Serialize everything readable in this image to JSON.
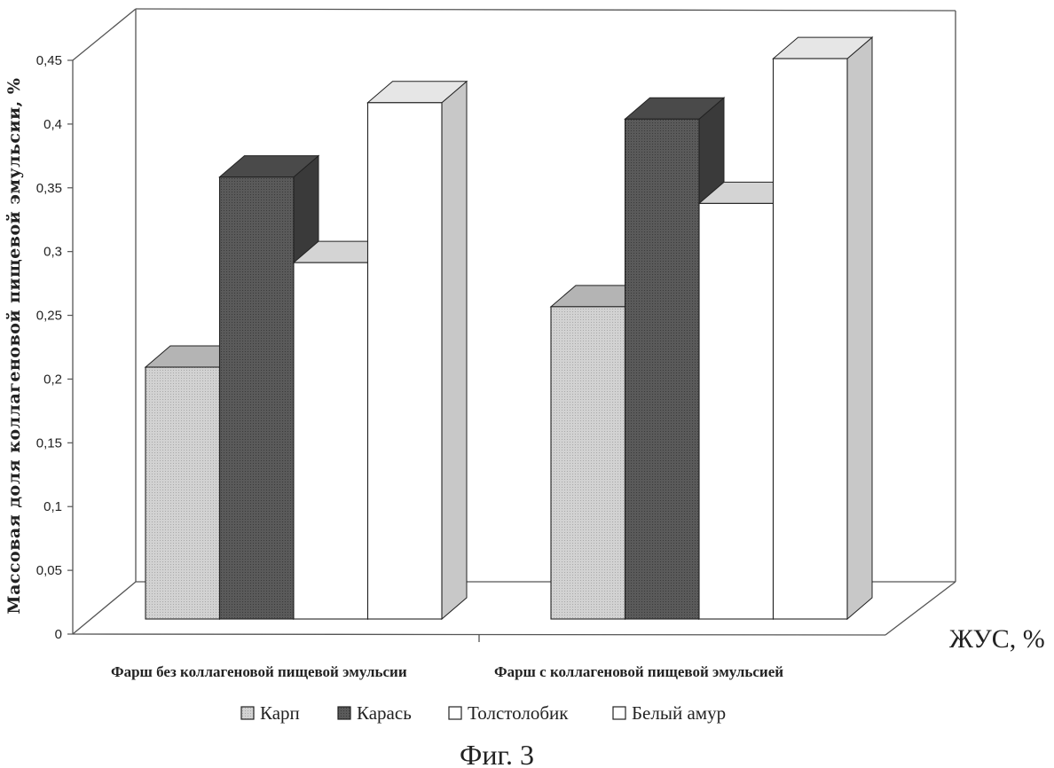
{
  "chart_data": {
    "type": "bar",
    "variant": "3d-clustered",
    "ylabel": "Массовая доля коллагеновой пищевой эмульсии, %",
    "xlabel": "ЖУС, %",
    "ylim": [
      0,
      0.45
    ],
    "y_ticks": [
      "0",
      "0,05",
      "0,1",
      "0,15",
      "0,2",
      "0,25",
      "0,3",
      "0,35",
      "0,4",
      "0,45"
    ],
    "categories": [
      "Фарш без коллагеновой пищевой эмульсии",
      "Фарш с коллагеновой пищевой эмульсией"
    ],
    "series": [
      {
        "name": "Карп",
        "values": [
          0.2,
          0.248
        ],
        "color": "#c4c4c4"
      },
      {
        "name": "Карась",
        "values": [
          0.351,
          0.397
        ],
        "color": "#5e5e5e"
      },
      {
        "name": "Толстолобик",
        "values": [
          0.283,
          0.33
        ],
        "color": "#ffffff"
      },
      {
        "name": "Белый амур",
        "values": [
          0.41,
          0.445
        ],
        "color": "#ffffff"
      }
    ],
    "legend_position": "bottom",
    "grid": false
  },
  "caption": "Фиг. 3"
}
